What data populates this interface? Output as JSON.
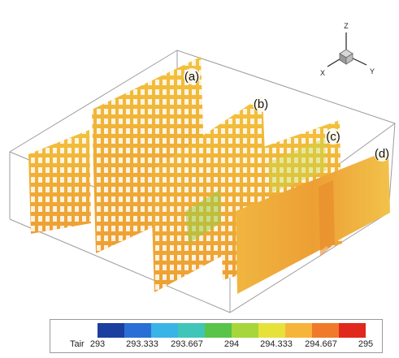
{
  "panel_labels": [
    "(a)",
    "(b)",
    "(c)",
    "(d)"
  ],
  "axis_triad": {
    "z": "Z",
    "x": "X",
    "y": "Y"
  },
  "legend": {
    "variable": "Tair",
    "ticks": [
      "293",
      "293.333",
      "293.667",
      "294",
      "294.333",
      "294.667",
      "295"
    ],
    "range": [
      293,
      295
    ],
    "colors": [
      "#1b3f9e",
      "#2a6fd6",
      "#39b4e6",
      "#3fc6b8",
      "#58c44a",
      "#a6d63a",
      "#e6e23a",
      "#f7b43a",
      "#f07a2a",
      "#e0281d"
    ]
  }
}
